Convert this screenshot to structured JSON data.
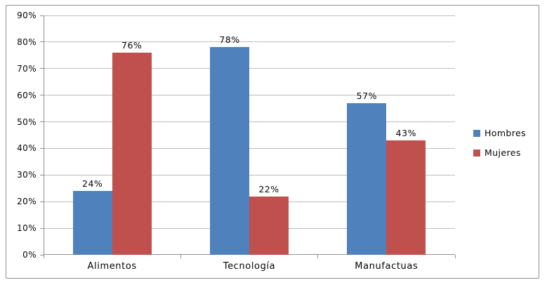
{
  "chart_data": {
    "type": "bar",
    "title": "",
    "categories": [
      "Alimentos",
      "Tecnología",
      "Manufactuas"
    ],
    "series": [
      {
        "name": "Hombres",
        "color": "#4F81BD",
        "values": [
          24,
          78,
          57
        ],
        "labels": [
          "24%",
          "78%",
          "57%"
        ]
      },
      {
        "name": "Mujeres",
        "color": "#C0504D",
        "values": [
          76,
          22,
          43
        ],
        "labels": [
          "76%",
          "22%",
          "43%"
        ]
      }
    ],
    "ylim": [
      0,
      90
    ],
    "ytick_step": 10,
    "ytick_labels": [
      "0%",
      "10%",
      "20%",
      "30%",
      "40%",
      "50%",
      "60%",
      "70%",
      "80%",
      "90%"
    ],
    "grid": true,
    "legend_position": "right",
    "legend": [
      {
        "label": "Hombres",
        "color": "#4F81BD"
      },
      {
        "label": "Mujeres",
        "color": "#C0504D"
      }
    ],
    "colors": {
      "gridline": "#BDBDBD",
      "axis": "#8F8F8F",
      "chart_border": "#8C8C8C",
      "background": "#FFFFFF"
    }
  }
}
